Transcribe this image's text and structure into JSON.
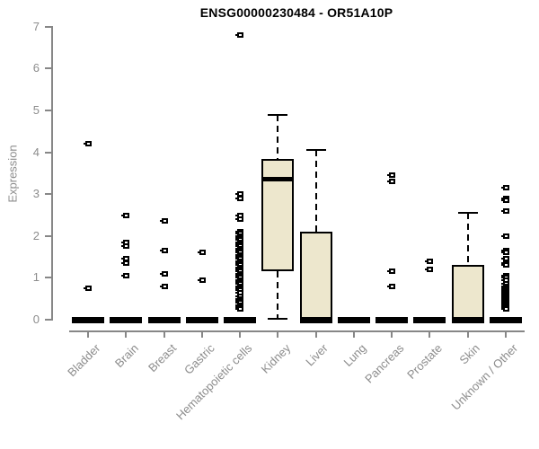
{
  "chart_data": {
    "type": "boxplot",
    "title": "ENSG00000230484 - OR51A10P",
    "xlabel": "",
    "ylabel": "Expression",
    "ylim": [
      0,
      7
    ],
    "yticks": [
      0,
      1,
      2,
      3,
      4,
      5,
      6,
      7
    ],
    "grid": false,
    "legend": "none",
    "categories": [
      "Bladder",
      "Brain",
      "Breast",
      "Gastric",
      "Hematopoietic cells",
      "Kidney",
      "Liver",
      "Lung",
      "Pancreas",
      "Prostate",
      "Skin",
      "Unknown / Other"
    ],
    "boxes": [
      {
        "q1": 0,
        "median": 0,
        "q3": 0,
        "whisker_low": 0,
        "whisker_high": 0,
        "outliers": [
          4.2,
          0.75
        ]
      },
      {
        "q1": 0,
        "median": 0,
        "q3": 0,
        "whisker_low": 0,
        "whisker_high": 0,
        "outliers": [
          2.5,
          1.85,
          1.75,
          1.45,
          1.35,
          1.05
        ]
      },
      {
        "q1": 0,
        "median": 0,
        "q3": 0,
        "whisker_low": 0,
        "whisker_high": 0,
        "outliers": [
          2.35,
          1.65,
          1.1,
          0.8
        ]
      },
      {
        "q1": 0,
        "median": 0,
        "q3": 0,
        "whisker_low": 0,
        "whisker_high": 0,
        "outliers": [
          1.6,
          0.95
        ]
      },
      {
        "q1": 0,
        "median": 0,
        "q3": 0,
        "whisker_low": 0,
        "whisker_high": 0,
        "outliers": [
          6.8,
          3.0,
          2.9,
          2.5,
          2.4,
          2.1,
          2.05,
          2.0,
          1.95,
          1.9,
          1.85,
          1.8,
          1.75,
          1.7,
          1.65,
          1.6,
          1.55,
          1.5,
          1.45,
          1.4,
          1.35,
          1.3,
          1.25,
          1.2,
          1.15,
          1.1,
          1.05,
          1.0,
          0.95,
          0.9,
          0.85,
          0.8,
          0.75,
          0.7,
          0.65,
          0.55,
          0.5,
          0.45,
          0.4,
          0.35,
          0.3,
          0.25
        ]
      },
      {
        "q1": 1.15,
        "median": 3.35,
        "q3": 3.85,
        "whisker_low": 0.02,
        "whisker_high": 4.9,
        "outliers": []
      },
      {
        "q1": 0,
        "median": 0.02,
        "q3": 2.1,
        "whisker_low": 0,
        "whisker_high": 4.05,
        "outliers": []
      },
      {
        "q1": 0,
        "median": 0,
        "q3": 0,
        "whisker_low": 0,
        "whisker_high": 0,
        "outliers": []
      },
      {
        "q1": 0,
        "median": 0,
        "q3": 0,
        "whisker_low": 0,
        "whisker_high": 0,
        "outliers": [
          3.45,
          3.3,
          1.15,
          0.8
        ]
      },
      {
        "q1": 0,
        "median": 0,
        "q3": 0,
        "whisker_low": 0,
        "whisker_high": 0,
        "outliers": [
          1.4,
          1.2
        ]
      },
      {
        "q1": 0,
        "median": 0.02,
        "q3": 1.3,
        "whisker_low": 0,
        "whisker_high": 2.55,
        "outliers": []
      },
      {
        "q1": 0,
        "median": 0,
        "q3": 0,
        "whisker_low": 0,
        "whisker_high": 0,
        "outliers": [
          3.15,
          2.9,
          2.85,
          2.6,
          2.0,
          1.65,
          1.6,
          1.45,
          1.35,
          1.3,
          1.05,
          1.0,
          0.95,
          0.85,
          0.8,
          0.78,
          0.75,
          0.72,
          0.7,
          0.68,
          0.65,
          0.62,
          0.6,
          0.58,
          0.55,
          0.52,
          0.5,
          0.48,
          0.45,
          0.42,
          0.4,
          0.38,
          0.35,
          0.32,
          0.3,
          0.28,
          0.25
        ]
      }
    ],
    "colors": {
      "box_fill": "#EDE7CD",
      "box_border": "#000000",
      "median": "#000000",
      "axis": "#878787",
      "tick_label": "#8c8c8c",
      "title": "#000000",
      "background": "#ffffff"
    }
  }
}
